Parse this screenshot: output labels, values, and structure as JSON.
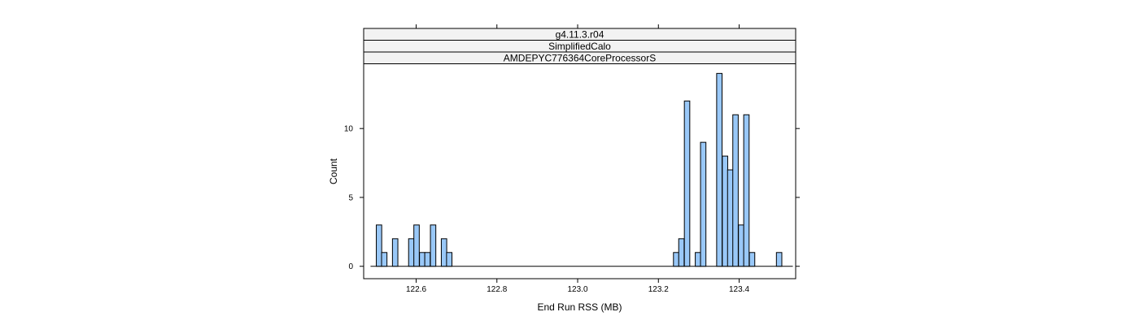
{
  "chart_data": {
    "type": "bar",
    "strips": [
      "g4.11.3.r04",
      "SimplifiedCalo",
      "AMDEPYC776364CoreProcessorS"
    ],
    "xlabel": "End Run RSS (MB)",
    "ylabel": "Count",
    "xlim": [
      122.47,
      123.54
    ],
    "ylim": [
      -0.9,
      14.7
    ],
    "x_ticks": [
      "122.6",
      "122.8",
      "123.0",
      "123.2",
      "123.4"
    ],
    "y_ticks": [
      "0",
      "5",
      "10"
    ],
    "bin_width": 0.0134,
    "baseline_range": [
      122.487,
      123.533
    ],
    "bins": [
      {
        "x": 122.508,
        "count": 3
      },
      {
        "x": 122.521,
        "count": 1
      },
      {
        "x": 122.548,
        "count": 2
      },
      {
        "x": 122.588,
        "count": 2
      },
      {
        "x": 122.601,
        "count": 3
      },
      {
        "x": 122.615,
        "count": 1
      },
      {
        "x": 122.628,
        "count": 1
      },
      {
        "x": 122.642,
        "count": 3
      },
      {
        "x": 122.669,
        "count": 2
      },
      {
        "x": 122.682,
        "count": 1
      },
      {
        "x": 123.244,
        "count": 1
      },
      {
        "x": 123.257,
        "count": 2
      },
      {
        "x": 123.271,
        "count": 12
      },
      {
        "x": 123.298,
        "count": 1
      },
      {
        "x": 123.311,
        "count": 9
      },
      {
        "x": 123.351,
        "count": 14
      },
      {
        "x": 123.365,
        "count": 8
      },
      {
        "x": 123.378,
        "count": 7
      },
      {
        "x": 123.391,
        "count": 11
      },
      {
        "x": 123.405,
        "count": 3
      },
      {
        "x": 123.418,
        "count": 11
      },
      {
        "x": 123.432,
        "count": 1
      },
      {
        "x": 123.499,
        "count": 1
      }
    ],
    "colors": {
      "bar_fill": "#99c8f8",
      "bar_stroke": "#000000",
      "strip_fill": "#f2f2f2"
    }
  }
}
